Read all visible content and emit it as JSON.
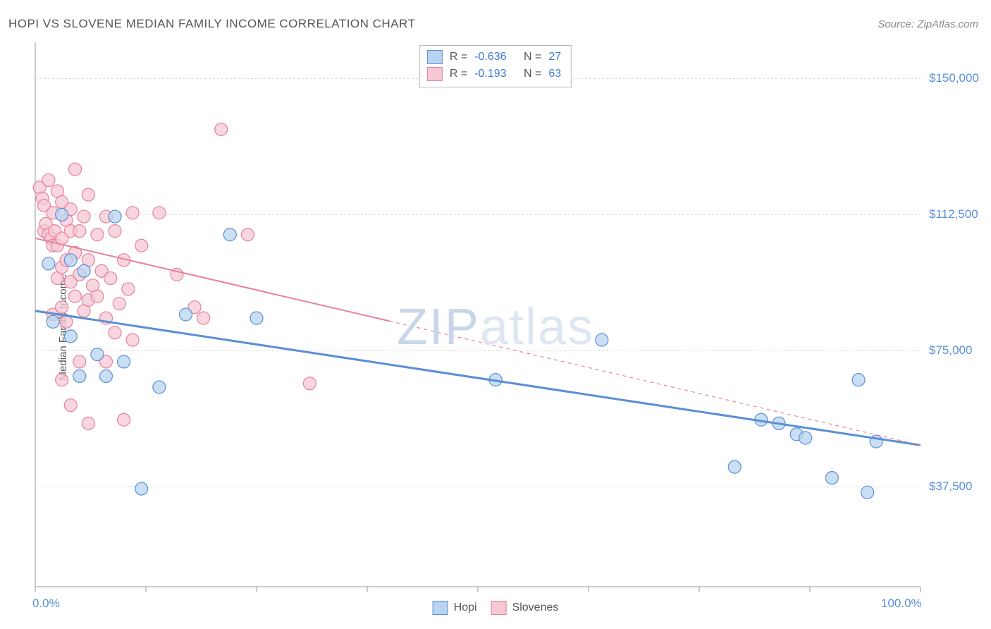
{
  "title": "HOPI VS SLOVENE MEDIAN FAMILY INCOME CORRELATION CHART",
  "source": "Source: ZipAtlas.com",
  "ylabel": "Median Family Income",
  "watermark_zip": "ZIP",
  "watermark_atlas": "atlas",
  "chart": {
    "type": "scatter",
    "background_color": "#ffffff",
    "border_color": "#999999",
    "grid_color": "#d9d9d9",
    "grid_dash": "3,3",
    "xlim": [
      0,
      100
    ],
    "ylim": [
      10000,
      160000
    ],
    "x_ticks": [
      0,
      12.5,
      25,
      37.5,
      50,
      62.5,
      75,
      87.5,
      100
    ],
    "y_ticks": [
      37500,
      75000,
      112500,
      150000
    ],
    "y_tick_labels": [
      "$37,500",
      "$75,000",
      "$112,500",
      "$150,000"
    ],
    "x_tick_labels_shown": {
      "0": "0.0%",
      "100": "100.0%"
    },
    "marker_radius": 9,
    "marker_stroke_width": 1.2,
    "series": [
      {
        "name": "Hopi",
        "color_fill": "#b8d4f0",
        "color_stroke": "#5a8fd6",
        "R": "-0.636",
        "N": "27",
        "trend": {
          "x1": 0,
          "y1": 86000,
          "x2": 100,
          "y2": 49000,
          "solid_until_x": 100,
          "width": 3
        },
        "points": [
          [
            1.5,
            99000
          ],
          [
            2,
            83000
          ],
          [
            3,
            112500
          ],
          [
            4,
            100000
          ],
          [
            4,
            79000
          ],
          [
            5,
            68000
          ],
          [
            5.5,
            97000
          ],
          [
            7,
            74000
          ],
          [
            8,
            68000
          ],
          [
            9,
            112000
          ],
          [
            10,
            72000
          ],
          [
            12,
            37000
          ],
          [
            14,
            65000
          ],
          [
            17,
            85000
          ],
          [
            22,
            107000
          ],
          [
            25,
            84000
          ],
          [
            52,
            67000
          ],
          [
            64,
            78000
          ],
          [
            79,
            43000
          ],
          [
            82,
            56000
          ],
          [
            84,
            55000
          ],
          [
            86,
            52000
          ],
          [
            87,
            51000
          ],
          [
            90,
            40000
          ],
          [
            93,
            67000
          ],
          [
            94,
            36000
          ],
          [
            95,
            50000
          ]
        ]
      },
      {
        "name": "Slovenes",
        "color_fill": "#f6c8d4",
        "color_stroke": "#e8809b",
        "R": "-0.193",
        "N": "63",
        "trend": {
          "x1": 0,
          "y1": 106000,
          "x2": 100,
          "y2": 49000,
          "solid_until_x": 40,
          "width": 2,
          "dash": "5,5"
        },
        "points": [
          [
            0.5,
            120000
          ],
          [
            0.8,
            117000
          ],
          [
            1,
            115000
          ],
          [
            1,
            108000
          ],
          [
            1.2,
            110000
          ],
          [
            1.5,
            122000
          ],
          [
            1.5,
            107000
          ],
          [
            1.8,
            106000
          ],
          [
            2,
            113000
          ],
          [
            2,
            104000
          ],
          [
            2,
            85000
          ],
          [
            2.2,
            108000
          ],
          [
            2.5,
            119000
          ],
          [
            2.5,
            104000
          ],
          [
            2.5,
            95000
          ],
          [
            3,
            116000
          ],
          [
            3,
            106000
          ],
          [
            3,
            98000
          ],
          [
            3,
            87000
          ],
          [
            3,
            67000
          ],
          [
            3.5,
            111000
          ],
          [
            3.5,
            100000
          ],
          [
            3.5,
            83000
          ],
          [
            4,
            114000
          ],
          [
            4,
            108000
          ],
          [
            4,
            94000
          ],
          [
            4,
            60000
          ],
          [
            4.5,
            125000
          ],
          [
            4.5,
            102000
          ],
          [
            4.5,
            90000
          ],
          [
            5,
            108000
          ],
          [
            5,
            96000
          ],
          [
            5,
            72000
          ],
          [
            5.5,
            112000
          ],
          [
            5.5,
            86000
          ],
          [
            6,
            118000
          ],
          [
            6,
            100000
          ],
          [
            6,
            89000
          ],
          [
            6,
            55000
          ],
          [
            6.5,
            93000
          ],
          [
            7,
            107000
          ],
          [
            7,
            90000
          ],
          [
            7.5,
            97000
          ],
          [
            8,
            112000
          ],
          [
            8,
            84000
          ],
          [
            8,
            72000
          ],
          [
            8.5,
            95000
          ],
          [
            9,
            108000
          ],
          [
            9,
            80000
          ],
          [
            9.5,
            88000
          ],
          [
            10,
            100000
          ],
          [
            10,
            56000
          ],
          [
            10.5,
            92000
          ],
          [
            11,
            113000
          ],
          [
            11,
            78000
          ],
          [
            12,
            104000
          ],
          [
            14,
            113000
          ],
          [
            16,
            96000
          ],
          [
            18,
            87000
          ],
          [
            19,
            84000
          ],
          [
            21,
            136000
          ],
          [
            24,
            107000
          ],
          [
            31,
            66000
          ]
        ]
      }
    ],
    "legend": {
      "stats_border": "#b8b8b8",
      "label_R": "R =",
      "label_N": "N =",
      "items": [
        {
          "name": "Hopi"
        },
        {
          "name": "Slovenes"
        }
      ]
    }
  }
}
